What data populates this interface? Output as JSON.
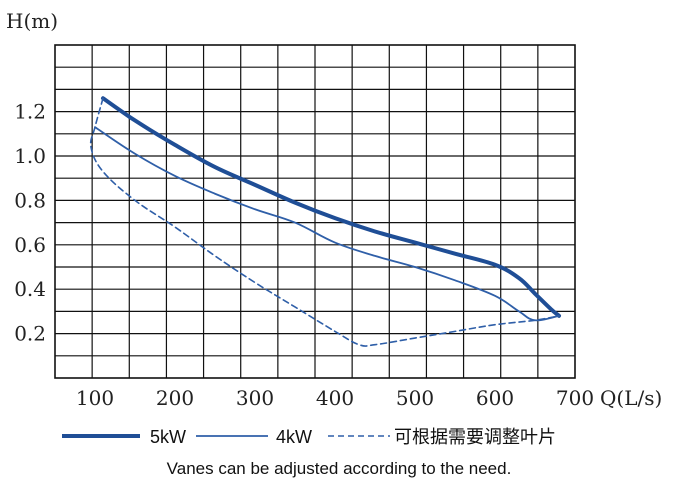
{
  "chart_data": {
    "type": "line",
    "ylabel": "H(m)",
    "xlabel": "Q(L/s)",
    "x_ticks": [
      "100",
      "200",
      "300",
      "400",
      "500",
      "600",
      "700"
    ],
    "y_ticks": [
      "0.2",
      "0.4",
      "0.6",
      "0.8",
      "1.0",
      "1.2"
    ],
    "xlim": [
      50,
      700
    ],
    "ylim": [
      0,
      1.5
    ],
    "grid": true,
    "legend_position": "bottom",
    "series": [
      {
        "name": "5kW",
        "style": "thick-solid",
        "color": "#1f4e96",
        "points": [
          [
            110,
            1.26
          ],
          [
            150,
            1.16
          ],
          [
            200,
            1.05
          ],
          [
            250,
            0.95
          ],
          [
            300,
            0.87
          ],
          [
            350,
            0.79
          ],
          [
            400,
            0.72
          ],
          [
            450,
            0.66
          ],
          [
            500,
            0.61
          ],
          [
            550,
            0.56
          ],
          [
            600,
            0.51
          ],
          [
            630,
            0.45
          ],
          [
            650,
            0.38
          ],
          [
            670,
            0.31
          ],
          [
            680,
            0.28
          ]
        ]
      },
      {
        "name": "4kW",
        "style": "thin-solid",
        "color": "#2f5fa8",
        "points": [
          [
            100,
            1.13
          ],
          [
            150,
            1.01
          ],
          [
            200,
            0.91
          ],
          [
            250,
            0.83
          ],
          [
            300,
            0.76
          ],
          [
            350,
            0.7
          ],
          [
            400,
            0.61
          ],
          [
            450,
            0.55
          ],
          [
            500,
            0.5
          ],
          [
            550,
            0.44
          ],
          [
            600,
            0.37
          ],
          [
            630,
            0.3
          ],
          [
            650,
            0.26
          ],
          [
            680,
            0.28
          ]
        ]
      },
      {
        "name": "可根据需要调整叶片",
        "style": "dashed",
        "color": "#2f5fa8",
        "points": [
          [
            110,
            1.26
          ],
          [
            100,
            1.13
          ],
          [
            95,
            1.04
          ],
          [
            110,
            0.93
          ],
          [
            150,
            0.8
          ],
          [
            200,
            0.68
          ],
          [
            250,
            0.55
          ],
          [
            300,
            0.43
          ],
          [
            350,
            0.32
          ],
          [
            400,
            0.21
          ],
          [
            430,
            0.15
          ],
          [
            450,
            0.15
          ],
          [
            500,
            0.18
          ],
          [
            550,
            0.21
          ],
          [
            600,
            0.24
          ],
          [
            650,
            0.26
          ],
          [
            680,
            0.28
          ]
        ]
      }
    ],
    "caption": "Vanes can be adjusted according to the need."
  }
}
